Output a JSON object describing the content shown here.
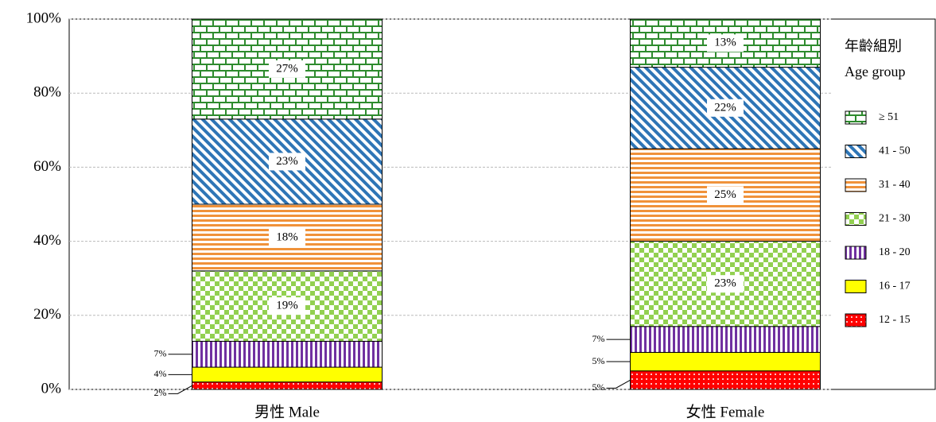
{
  "chart_data": {
    "type": "stacked-bar",
    "categories": [
      "男性 Male",
      "女性 Female"
    ],
    "legend_title": [
      "年齡組別",
      "Age group"
    ],
    "legend": "right",
    "grid": true,
    "ylim": [
      0,
      100
    ],
    "yticks": [
      {
        "value": 0,
        "label": "0%"
      },
      {
        "value": 20,
        "label": "20%"
      },
      {
        "value": 40,
        "label": "40%"
      },
      {
        "value": 60,
        "label": "60%"
      },
      {
        "value": 80,
        "label": "80%"
      },
      {
        "value": 100,
        "label": "100%"
      }
    ],
    "series": [
      {
        "name": "12 - 15",
        "color": "#ff0000",
        "pattern": "dots",
        "values": [
          2,
          5
        ],
        "value_labels": [
          "2%",
          "5%"
        ]
      },
      {
        "name": "16 - 17",
        "color": "#ffff00",
        "pattern": "solid",
        "values": [
          4,
          5
        ],
        "value_labels": [
          "4%",
          "5%"
        ]
      },
      {
        "name": "18 - 20",
        "color": "#7030a0",
        "pattern": "vstripe",
        "values": [
          7,
          7
        ],
        "value_labels": [
          "7%",
          "7%"
        ]
      },
      {
        "name": "21 - 30",
        "color": "#92d050",
        "pattern": "checker",
        "values": [
          19,
          23
        ],
        "value_labels": [
          "19%",
          "23%"
        ]
      },
      {
        "name": "31 - 40",
        "color": "#f0923a",
        "pattern": "hstripe",
        "values": [
          18,
          25
        ],
        "value_labels": [
          "18%",
          "25%"
        ]
      },
      {
        "name": "41 - 50",
        "color": "#2e75b6",
        "pattern": "diag",
        "values": [
          23,
          22
        ],
        "value_labels": [
          "23%",
          "22%"
        ]
      },
      {
        "name": "≥ 51",
        "color": "#2e8b2e",
        "pattern": "brick",
        "values": [
          27,
          13
        ],
        "value_labels": [
          "27%",
          "13%"
        ]
      }
    ]
  }
}
